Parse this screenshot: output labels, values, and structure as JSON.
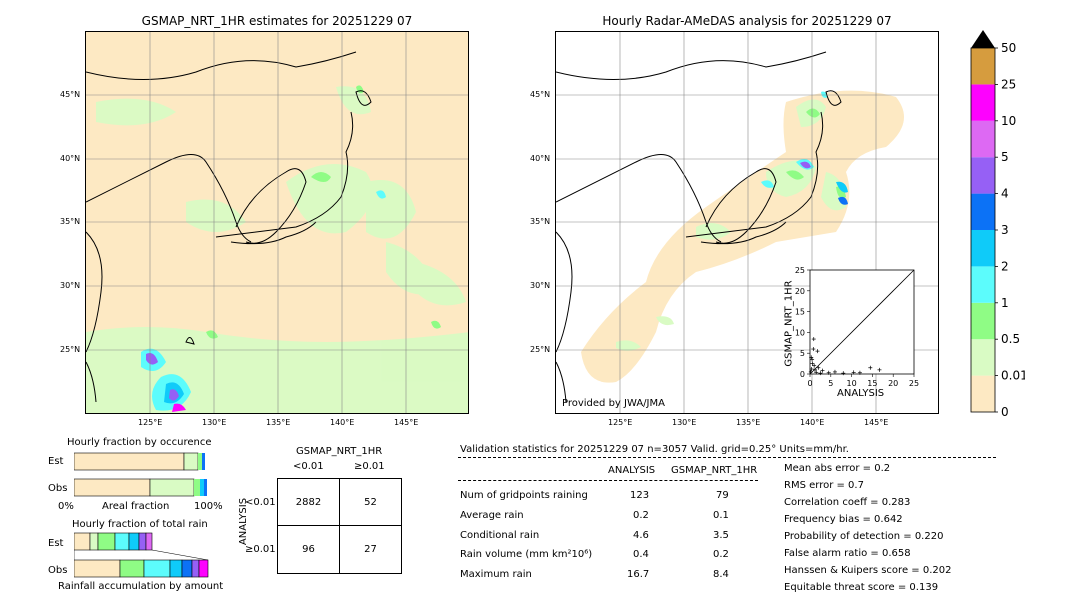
{
  "maps": {
    "left_title": "GSMAP_NRT_1HR estimates for 20251229 07",
    "right_title": "Hourly Radar-AMeDAS analysis for 20251229 07",
    "lat_labels": [
      "45°N",
      "40°N",
      "35°N",
      "30°N",
      "25°N"
    ],
    "lon_labels": [
      "125°E",
      "130°E",
      "135°E",
      "140°E",
      "145°E"
    ],
    "credit": "Provided by JWA/JMA"
  },
  "colorbar": {
    "labels": [
      "0",
      "0.01",
      "0.5",
      "1",
      "2",
      "3",
      "4",
      "5",
      "10",
      "25",
      "50"
    ],
    "colors": [
      "#fde9c3",
      "#d9fbc4",
      "#8ffc85",
      "#5cfcfc",
      "#0fcbf9",
      "#0c72f6",
      "#9660f5",
      "#dd69f3",
      "#fd02fe",
      "#d69c3e",
      "#000000"
    ]
  },
  "scatter": {
    "xlabel": "ANALYSIS",
    "ylabel": "GSMAP_NRT_1HR",
    "ticks": [
      "0",
      "5",
      "10",
      "15",
      "20",
      "25"
    ]
  },
  "fraction": {
    "occ_title": "Hourly fraction by occurence",
    "total_title": "Hourly fraction of total rain",
    "est_label": "Est",
    "obs_label": "Obs",
    "axis_left": "0%",
    "axis_mid": "Areal fraction",
    "axis_right": "100%",
    "footer": "Rainfall accumulation by amount"
  },
  "contingency": {
    "header": "GSMAP_NRT_1HR",
    "col1": "<0.01",
    "col2": "≥0.01",
    "row_axis": "ANALYSIS",
    "row1": "<0.01",
    "row2": "≥0.01",
    "cells": [
      "2882",
      "52",
      "96",
      "27"
    ]
  },
  "validation": {
    "heading": "Validation statistics for 20251229 07  n=3057 Valid. grid=0.25° Units=mm/hr.",
    "col_analysis": "ANALYSIS",
    "col_gsmap": "GSMAP_NRT_1HR",
    "rows": [
      {
        "label": "Num of gridpoints raining",
        "a": "123",
        "g": "79"
      },
      {
        "label": "Average rain",
        "a": "0.2",
        "g": "0.1"
      },
      {
        "label": "Conditional rain",
        "a": "4.6",
        "g": "3.5"
      },
      {
        "label": "Rain volume (mm km²10⁶)",
        "a": "0.4",
        "g": "0.2"
      },
      {
        "label": "Maximum rain",
        "a": "16.7",
        "g": "8.4"
      }
    ],
    "scores": [
      "Mean abs error =    0.2",
      "RMS error =    0.7",
      "Correlation coeff =  0.283",
      "Frequency bias =  0.642",
      "Probability of detection =  0.220",
      "False alarm ratio =  0.658",
      "Hanssen & Kuipers score =  0.202",
      "Equitable threat score =  0.139"
    ]
  },
  "chart_data": [
    {
      "type": "heatmap",
      "title": "GSMAP_NRT_1HR estimates for 20251229 07",
      "xlabel": "",
      "ylabel": "",
      "x_ticks": [
        "125°E",
        "130°E",
        "135°E",
        "140°E",
        "145°E"
      ],
      "y_ticks": [
        "45°N",
        "40°N",
        "35°N",
        "30°N",
        "25°N"
      ]
    },
    {
      "type": "heatmap",
      "title": "Hourly Radar-AMeDAS analysis for 20251229 07",
      "xlabel": "",
      "ylabel": "",
      "x_ticks": [
        "125°E",
        "130°E",
        "135°E",
        "140°E",
        "145°E"
      ],
      "y_ticks": [
        "45°N",
        "40°N",
        "35°N",
        "30°N",
        "25°N"
      ]
    },
    {
      "type": "scatter",
      "xlabel": "ANALYSIS",
      "ylabel": "GSMAP_NRT_1HR",
      "xlim": [
        0,
        25
      ],
      "ylim": [
        0,
        25
      ],
      "x": [
        0.2,
        0.4,
        0.5,
        0.8,
        1.0,
        1.2,
        1.5,
        0.3,
        0.6,
        2.0,
        3.0,
        4.5,
        6.0,
        8.0,
        10.5,
        12.0,
        14.5,
        16.7,
        1.8,
        0.9,
        2.5
      ],
      "y": [
        0.5,
        1.2,
        3.5,
        6.0,
        2.0,
        1.0,
        0.4,
        4.0,
        2.5,
        1.5,
        0.8,
        0.3,
        0.5,
        0.2,
        0.4,
        0.3,
        1.5,
        1.0,
        5.5,
        8.4,
        0.2
      ]
    },
    {
      "type": "table",
      "title": "GSMAP_NRT_1HR",
      "ylabel": "ANALYSIS",
      "columns": [
        "<0.01",
        "≥0.01"
      ],
      "rows": [
        "<0.01",
        "≥0.01"
      ],
      "values": [
        [
          2882,
          52
        ],
        [
          96,
          27
        ]
      ]
    }
  ]
}
